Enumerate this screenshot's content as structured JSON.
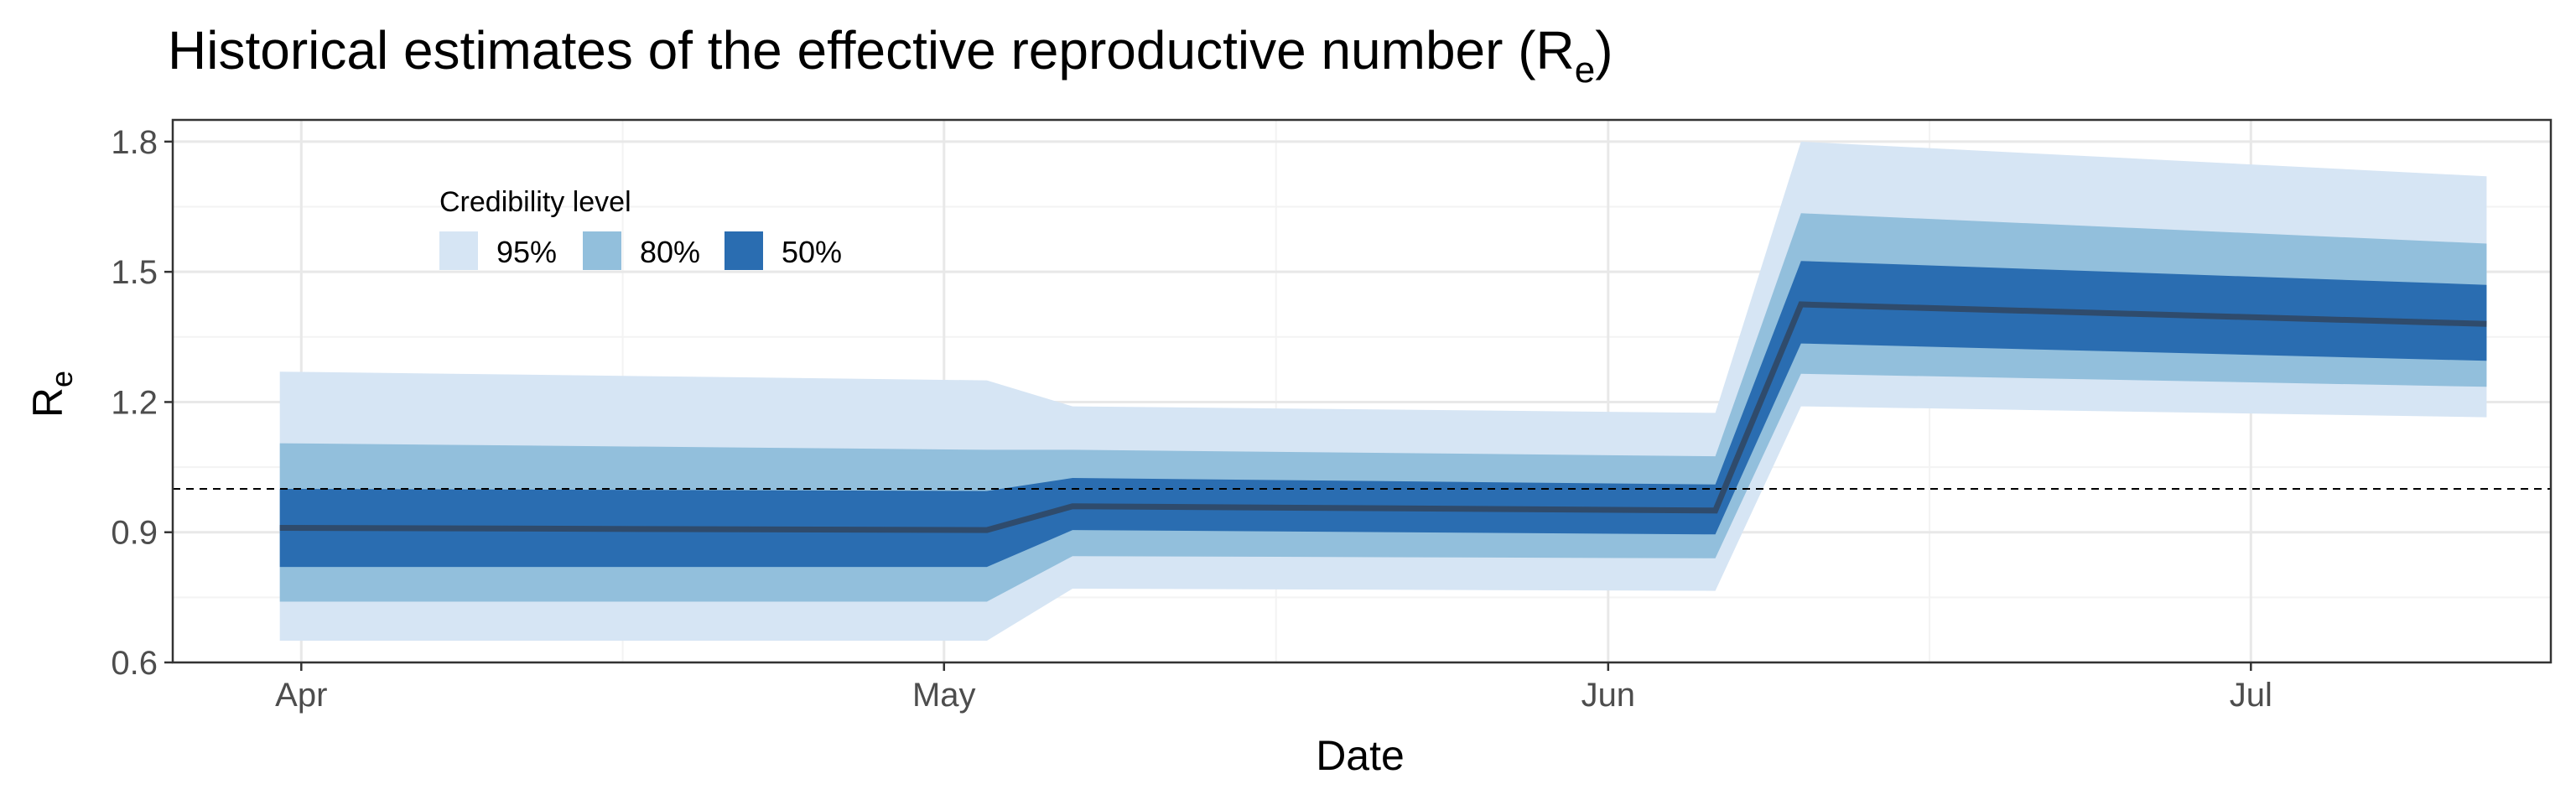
{
  "chart_data": {
    "type": "area",
    "title": "Historical estimates of the effective reproductive number (R",
    "title_subscript": "e",
    "title_close": ")",
    "xlabel": "Date",
    "ylabel": "R",
    "ylabel_subscript": "e",
    "x_ticks": [
      "Apr",
      "May",
      "Jun",
      "Jul"
    ],
    "x_tick_dates": [
      "2020-04-01",
      "2020-05-01",
      "2020-06-01",
      "2020-07-01"
    ],
    "xlim": [
      "2020-03-26",
      "2020-07-15"
    ],
    "y_ticks": [
      "0.6",
      "0.9",
      "1.2",
      "1.5",
      "1.8"
    ],
    "ylim": [
      0.6,
      1.85
    ],
    "reference_line": 1.0,
    "grid": true,
    "legend": {
      "title": "Credibility level",
      "placement": "top-left",
      "items": [
        "95%",
        "80%",
        "50%"
      ]
    },
    "colors": {
      "band95": "#d6e5f4",
      "band80": "#92bfdc",
      "band50": "#2a6db1",
      "median": "#2f4b6c",
      "grid_major": "#e8e8e8",
      "grid_minor": "#f3f3f3",
      "reference": "#000000"
    },
    "x": [
      "2020-03-31",
      "2020-05-03",
      "2020-05-07",
      "2020-06-06",
      "2020-06-10",
      "2020-07-12"
    ],
    "median": [
      0.91,
      0.905,
      0.96,
      0.95,
      1.425,
      1.38
    ],
    "band95": {
      "lower": [
        0.65,
        0.65,
        0.77,
        0.765,
        1.19,
        1.165
      ],
      "upper": [
        1.27,
        1.25,
        1.19,
        1.175,
        1.8,
        1.72
      ]
    },
    "band80": {
      "lower": [
        0.74,
        0.74,
        0.845,
        0.84,
        1.265,
        1.235
      ],
      "upper": [
        1.105,
        1.09,
        1.09,
        1.075,
        1.635,
        1.565
      ]
    },
    "band50": {
      "lower": [
        0.82,
        0.82,
        0.905,
        0.895,
        1.335,
        1.295
      ],
      "upper": [
        1.0,
        0.995,
        1.025,
        1.01,
        1.525,
        1.47
      ]
    }
  }
}
